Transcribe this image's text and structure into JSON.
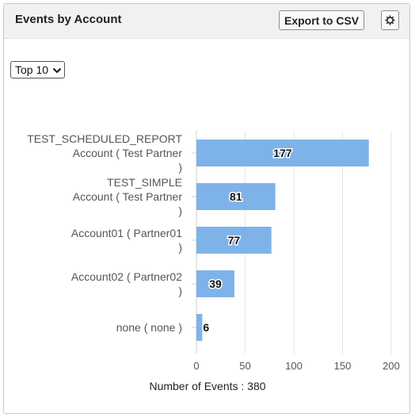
{
  "panel": {
    "title": "Events by Account",
    "export_label": "Export to CSV",
    "settings_icon": "gear-icon"
  },
  "filter": {
    "selected": "Top 10",
    "icon": "chevron-down-icon"
  },
  "colors": {
    "bar": "#7eb3ea",
    "grid": "#e6e6e6"
  },
  "chart_data": {
    "type": "bar",
    "orientation": "horizontal",
    "categories": [
      [
        "TEST_SCHEDULED_REPORT",
        "Account ( Test Partner",
        ")"
      ],
      [
        "TEST_SIMPLE",
        "Account ( Test Partner",
        ")"
      ],
      [
        "Account01 ( Partner01",
        ")"
      ],
      [
        "Account02 ( Partner02",
        ")"
      ],
      [
        "none ( none )"
      ]
    ],
    "values": [
      177,
      81,
      77,
      39,
      6
    ],
    "xlim": [
      0,
      200
    ],
    "xticks": [
      0,
      50,
      100,
      150,
      200
    ],
    "xlabel": "Number of Events : 380",
    "grid": true,
    "data_labels": true
  }
}
